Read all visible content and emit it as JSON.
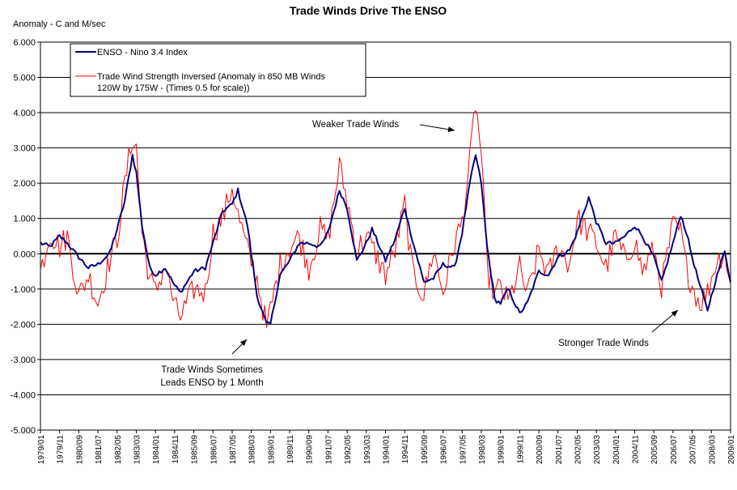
{
  "chart_data": {
    "type": "line",
    "title": "Trade Winds Drive The ENSO",
    "ylabel": "Anomaly - C and M/sec",
    "xlabel": "",
    "ylim": [
      -5,
      6
    ],
    "yticks": [
      "6.000",
      "5.000",
      "4.000",
      "3.000",
      "2.000",
      "1.000",
      "0.000",
      "-1.000",
      "-2.000",
      "-3.000",
      "-4.000",
      "-5.000"
    ],
    "x_range": [
      "1979/01",
      "2009/01"
    ],
    "x_tick_labels": [
      "1979/01",
      "1979/11",
      "1980/09",
      "1981/07",
      "1982/05",
      "1983/03",
      "1984/01",
      "1984/11",
      "1985/09",
      "1986/07",
      "1987/05",
      "1988/03",
      "1989/01",
      "1989/11",
      "1990/09",
      "1991/07",
      "1992/05",
      "1993/03",
      "1994/01",
      "1994/11",
      "1995/09",
      "1996/07",
      "1997/05",
      "1998/03",
      "1999/01",
      "1999/11",
      "2000/09",
      "2001/07",
      "2002/05",
      "2003/03",
      "2004/01",
      "2004/11",
      "2005/09",
      "2006/07",
      "2007/05",
      "2008/03",
      "2009/01"
    ],
    "grid": "horizontal",
    "legend_position": "top-left",
    "series": [
      {
        "name": "ENSO - Nino 3.4 Index",
        "color": "#000080",
        "keypoints": [
          [
            "1979/01",
            0.3
          ],
          [
            "1979/06",
            0.2
          ],
          [
            "1979/11",
            0.5
          ],
          [
            "1980/03",
            0.3
          ],
          [
            "1980/09",
            -0.1
          ],
          [
            "1981/02",
            -0.4
          ],
          [
            "1981/07",
            -0.3
          ],
          [
            "1982/01",
            0.0
          ],
          [
            "1982/05",
            0.7
          ],
          [
            "1982/09",
            1.5
          ],
          [
            "1983/01",
            2.8
          ],
          [
            "1983/03",
            2.3
          ],
          [
            "1983/06",
            0.8
          ],
          [
            "1983/10",
            -0.4
          ],
          [
            "1984/01",
            -0.6
          ],
          [
            "1984/06",
            -0.4
          ],
          [
            "1984/11",
            -0.9
          ],
          [
            "1985/02",
            -1.1
          ],
          [
            "1985/09",
            -0.5
          ],
          [
            "1986/03",
            -0.4
          ],
          [
            "1986/07",
            0.3
          ],
          [
            "1986/12",
            1.2
          ],
          [
            "1987/05",
            1.4
          ],
          [
            "1987/08",
            1.8
          ],
          [
            "1988/01",
            0.8
          ],
          [
            "1988/06",
            -1.2
          ],
          [
            "1988/11",
            -2.0
          ],
          [
            "1989/01",
            -2.0
          ],
          [
            "1989/06",
            -0.6
          ],
          [
            "1989/11",
            -0.2
          ],
          [
            "1990/04",
            0.3
          ],
          [
            "1990/09",
            0.3
          ],
          [
            "1991/03",
            0.2
          ],
          [
            "1991/07",
            0.6
          ],
          [
            "1992/01",
            1.8
          ],
          [
            "1992/05",
            1.3
          ],
          [
            "1992/10",
            -0.2
          ],
          [
            "1993/03",
            0.3
          ],
          [
            "1993/06",
            0.7
          ],
          [
            "1994/01",
            -0.2
          ],
          [
            "1994/06",
            0.4
          ],
          [
            "1994/11",
            1.3
          ],
          [
            "1995/03",
            0.4
          ],
          [
            "1995/09",
            -0.8
          ],
          [
            "1996/02",
            -0.7
          ],
          [
            "1996/07",
            -0.3
          ],
          [
            "1997/01",
            -0.4
          ],
          [
            "1997/05",
            0.6
          ],
          [
            "1997/09",
            2.0
          ],
          [
            "1997/12",
            2.8
          ],
          [
            "1998/03",
            2.0
          ],
          [
            "1998/06",
            0.2
          ],
          [
            "1998/10",
            -1.3
          ],
          [
            "1999/01",
            -1.4
          ],
          [
            "1999/05",
            -1.0
          ],
          [
            "1999/11",
            -1.7
          ],
          [
            "2000/03",
            -1.4
          ],
          [
            "2000/09",
            -0.5
          ],
          [
            "2001/02",
            -0.6
          ],
          [
            "2001/07",
            -0.1
          ],
          [
            "2002/01",
            0.1
          ],
          [
            "2002/05",
            0.6
          ],
          [
            "2002/11",
            1.6
          ],
          [
            "2003/03",
            0.9
          ],
          [
            "2003/08",
            0.3
          ],
          [
            "2004/01",
            0.3
          ],
          [
            "2004/06",
            0.5
          ],
          [
            "2004/11",
            0.8
          ],
          [
            "2005/03",
            0.5
          ],
          [
            "2005/09",
            -0.1
          ],
          [
            "2006/01",
            -0.8
          ],
          [
            "2006/07",
            0.3
          ],
          [
            "2006/11",
            1.1
          ],
          [
            "2007/02",
            0.6
          ],
          [
            "2007/05",
            -0.1
          ],
          [
            "2007/09",
            -0.9
          ],
          [
            "2008/01",
            -1.6
          ],
          [
            "2008/05",
            -0.8
          ],
          [
            "2008/10",
            0.1
          ],
          [
            "2009/01",
            -0.8
          ]
        ]
      },
      {
        "name": "Trade Wind Strength Inversed (Anomaly in 850 MB Winds 120W by 175W - (Times 0.5 for scale))",
        "color": "#ff0000",
        "keypoints": [
          [
            "1979/01",
            -0.5
          ],
          [
            "1979/06",
            0.6
          ],
          [
            "1979/11",
            0.2
          ],
          [
            "1980/03",
            0.5
          ],
          [
            "1980/09",
            -1.2
          ],
          [
            "1981/02",
            -0.6
          ],
          [
            "1981/07",
            -1.4
          ],
          [
            "1982/01",
            -0.2
          ],
          [
            "1982/05",
            0.4
          ],
          [
            "1982/09",
            2.0
          ],
          [
            "1983/01",
            3.3
          ],
          [
            "1983/03",
            3.0
          ],
          [
            "1983/06",
            0.6
          ],
          [
            "1983/10",
            -0.7
          ],
          [
            "1984/01",
            -1.1
          ],
          [
            "1984/06",
            -0.3
          ],
          [
            "1984/11",
            -1.5
          ],
          [
            "1985/02",
            -1.8
          ],
          [
            "1985/09",
            -1.0
          ],
          [
            "1986/03",
            -1.1
          ],
          [
            "1986/07",
            0.6
          ],
          [
            "1986/12",
            1.0
          ],
          [
            "1987/05",
            1.9
          ],
          [
            "1987/08",
            1.1
          ],
          [
            "1988/01",
            0.1
          ],
          [
            "1988/06",
            -0.7
          ],
          [
            "1988/11",
            -2.1
          ],
          [
            "1989/01",
            -1.6
          ],
          [
            "1989/06",
            -0.3
          ],
          [
            "1989/11",
            0.2
          ],
          [
            "1990/04",
            0.5
          ],
          [
            "1990/09",
            -0.4
          ],
          [
            "1991/03",
            0.7
          ],
          [
            "1991/07",
            0.4
          ],
          [
            "1992/01",
            2.5
          ],
          [
            "1992/05",
            1.5
          ],
          [
            "1992/10",
            0.1
          ],
          [
            "1993/03",
            0.5
          ],
          [
            "1993/06",
            0.2
          ],
          [
            "1994/01",
            -0.6
          ],
          [
            "1994/06",
            0.1
          ],
          [
            "1994/11",
            1.4
          ],
          [
            "1995/03",
            -0.5
          ],
          [
            "1995/09",
            -1.2
          ],
          [
            "1996/02",
            0.1
          ],
          [
            "1996/07",
            -1.1
          ],
          [
            "1997/01",
            0.3
          ],
          [
            "1997/05",
            0.9
          ],
          [
            "1997/09",
            2.6
          ],
          [
            "1997/12",
            4.3
          ],
          [
            "1998/03",
            2.8
          ],
          [
            "1998/06",
            -0.4
          ],
          [
            "1998/10",
            -1.2
          ],
          [
            "1999/01",
            -0.9
          ],
          [
            "1999/05",
            -1.4
          ],
          [
            "1999/11",
            -0.4
          ],
          [
            "2000/03",
            -1.2
          ],
          [
            "2000/09",
            0.1
          ],
          [
            "2001/02",
            -0.6
          ],
          [
            "2001/07",
            0.2
          ],
          [
            "2002/01",
            -0.3
          ],
          [
            "2002/05",
            1.0
          ],
          [
            "2002/11",
            0.6
          ],
          [
            "2003/03",
            0.3
          ],
          [
            "2003/08",
            -0.4
          ],
          [
            "2004/01",
            0.5
          ],
          [
            "2004/06",
            -0.2
          ],
          [
            "2004/11",
            0.4
          ],
          [
            "2005/03",
            -0.5
          ],
          [
            "2005/09",
            0.1
          ],
          [
            "2006/01",
            -0.9
          ],
          [
            "2006/07",
            0.8
          ],
          [
            "2006/11",
            0.6
          ],
          [
            "2007/02",
            -0.4
          ],
          [
            "2007/05",
            -0.9
          ],
          [
            "2007/09",
            -1.4
          ],
          [
            "2008/01",
            -1.1
          ],
          [
            "2008/05",
            -0.3
          ],
          [
            "2008/10",
            0.1
          ],
          [
            "2009/01",
            -1.0
          ]
        ]
      }
    ],
    "annotations": [
      {
        "lines": [
          "Weaker Trade Winds"
        ],
        "target": [
          "1997/12",
          3.5
        ]
      },
      {
        "lines": [
          "Trade Winds Sometimes",
          "Leads ENSO by 1 Month"
        ],
        "target": [
          "1988/06",
          -2.5
        ]
      },
      {
        "lines": [
          "Stronger Trade Winds"
        ],
        "target": [
          "2007/05",
          -1.7
        ]
      }
    ]
  }
}
